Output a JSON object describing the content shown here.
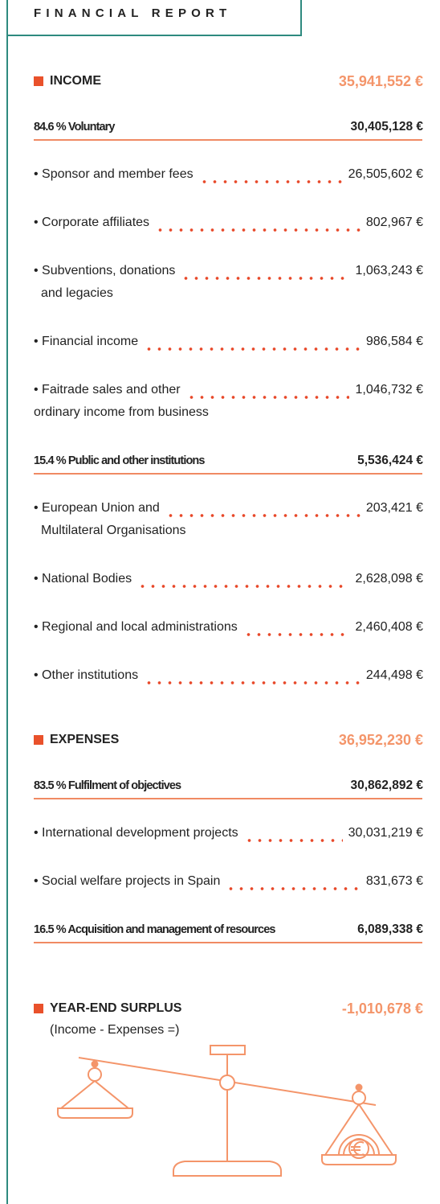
{
  "header": {
    "title": "FINANCIAL REPORT"
  },
  "sections": [
    {
      "label": "INCOME",
      "total": "35,941,552 €",
      "groups": [
        {
          "label": "84.6 % Voluntary",
          "amount": "30,405,128 €",
          "items": [
            {
              "label_lines": [
                "• Sponsor and member fees"
              ],
              "amount": "26,505,602 €"
            },
            {
              "label_lines": [
                "• Corporate affiliates"
              ],
              "amount": "802,967 €"
            },
            {
              "label_lines": [
                "• Subventions, donations",
                "and legacies"
              ],
              "amount": "1,063,243 €"
            },
            {
              "label_lines": [
                "• Financial income"
              ],
              "amount": "986,584 €"
            },
            {
              "label_lines": [
                "• Faitrade sales and other",
                "ordinary income from business"
              ],
              "amount": "1,046,732 €"
            }
          ]
        },
        {
          "label": "15.4 % Public and other institutions",
          "amount": "5,536,424 €",
          "items": [
            {
              "label_lines": [
                "• European Union and",
                "Multilateral Organisations"
              ],
              "amount": "203,421 €"
            },
            {
              "label_lines": [
                "• National Bodies"
              ],
              "amount": "2,628,098 €"
            },
            {
              "label_lines": [
                "• Regional and local administrations"
              ],
              "amount": "2,460,408 €"
            },
            {
              "label_lines": [
                "• Other institutions"
              ],
              "amount": "244,498 €"
            }
          ]
        }
      ]
    },
    {
      "label": "EXPENSES",
      "total": "36,952,230 €",
      "groups": [
        {
          "label": "83.5 % Fulfilment of objectives",
          "amount": "30,862,892 €",
          "items": [
            {
              "label_lines": [
                "• International development projects"
              ],
              "amount": "30,031,219 €"
            },
            {
              "label_lines": [
                "• Social welfare projects in Spain"
              ],
              "amount": "831,673 €"
            }
          ]
        },
        {
          "label": "16.5 % Acquisition and management of resources",
          "amount": "6,089,338 €",
          "items": []
        }
      ]
    }
  ],
  "surplus": {
    "label": "YEAR-END SURPLUS",
    "total": "-1,010,678 €",
    "note": "(Income - Expenses =)"
  }
}
